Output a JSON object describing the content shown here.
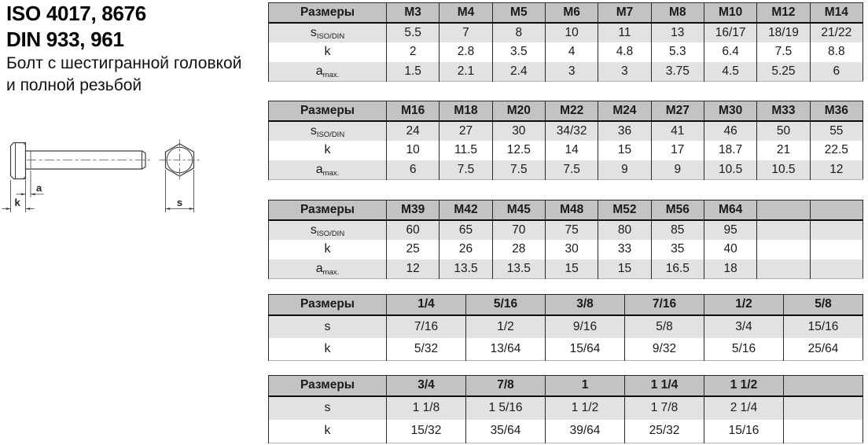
{
  "title": {
    "iso_line": "ISO 4017, 8676",
    "din_line": "DIN 933, 961",
    "desc_line1": "Болт с шестигранной головкой",
    "desc_line2": "и полной резьбой"
  },
  "drawing": {
    "labels": {
      "a": "a",
      "k": "k",
      "s": "s"
    }
  },
  "colors": {
    "header_bg": "#c3c3c3",
    "row_alt_bg": "#e2e2e2",
    "row_bg": "#ffffff",
    "border": "#2a2a2a",
    "text": "#1a1a1a"
  },
  "tables": [
    {
      "name": "metric-m3-m14",
      "corner_label": "Размеры",
      "columns": [
        "M3",
        "M4",
        "M5",
        "M6",
        "M7",
        "M8",
        "M10",
        "M12",
        "M14"
      ],
      "rows": [
        {
          "label": "s",
          "sub": "ISO/DIN",
          "values": [
            "5.5",
            "7",
            "8",
            "10",
            "11",
            "13",
            "16/17",
            "18/19",
            "21/22"
          ]
        },
        {
          "label": "k",
          "sub": "",
          "values": [
            "2",
            "2.8",
            "3.5",
            "4",
            "4.8",
            "5.3",
            "6.4",
            "7.5",
            "8.8"
          ]
        },
        {
          "label": "a",
          "sub": "max.",
          "values": [
            "1.5",
            "2.1",
            "2.4",
            "3",
            "3",
            "3.75",
            "4.5",
            "5.25",
            "6"
          ]
        }
      ]
    },
    {
      "name": "metric-m16-m36",
      "corner_label": "Размеры",
      "columns": [
        "M16",
        "M18",
        "M20",
        "M22",
        "M24",
        "M27",
        "M30",
        "M33",
        "M36"
      ],
      "rows": [
        {
          "label": "s",
          "sub": "ISO/DIN",
          "values": [
            "24",
            "27",
            "30",
            "34/32",
            "36",
            "41",
            "46",
            "50",
            "55"
          ]
        },
        {
          "label": "k",
          "sub": "",
          "values": [
            "10",
            "11.5",
            "12.5",
            "14",
            "15",
            "17",
            "18.7",
            "21",
            "22.5"
          ]
        },
        {
          "label": "a",
          "sub": "max.",
          "values": [
            "6",
            "7.5",
            "7.5",
            "7.5",
            "9",
            "9",
            "10.5",
            "10.5",
            "12"
          ]
        }
      ]
    },
    {
      "name": "metric-m39-m64",
      "corner_label": "Размеры",
      "columns": [
        "M39",
        "M42",
        "M45",
        "M48",
        "M52",
        "M56",
        "M64",
        "",
        ""
      ],
      "rows": [
        {
          "label": "s",
          "sub": "ISO/DIN",
          "values": [
            "60",
            "65",
            "70",
            "75",
            "80",
            "85",
            "95",
            "",
            ""
          ]
        },
        {
          "label": "k",
          "sub": "",
          "values": [
            "25",
            "26",
            "28",
            "30",
            "33",
            "35",
            "40",
            "",
            ""
          ]
        },
        {
          "label": "a",
          "sub": "max.",
          "values": [
            "12",
            "13.5",
            "13.5",
            "15",
            "15",
            "16.5",
            "18",
            "",
            ""
          ]
        }
      ]
    },
    {
      "name": "inch-1-4-to-5-8",
      "corner_label": "Размеры",
      "columns": [
        "1/4",
        "5/16",
        "3/8",
        "7/16",
        "1/2",
        "5/8"
      ],
      "rows": [
        {
          "label": "s",
          "sub": "",
          "values": [
            "7/16",
            "1/2",
            "9/16",
            "5/8",
            "3/4",
            "15/16"
          ]
        },
        {
          "label": "k",
          "sub": "",
          "values": [
            "5/32",
            "13/64",
            "15/64",
            "9/32",
            "5/16",
            "25/64"
          ]
        }
      ]
    },
    {
      "name": "inch-3-4-to-1-1-2",
      "corner_label": "Размеры",
      "columns": [
        "3/4",
        "7/8",
        "1",
        "1 1/4",
        "1 1/2",
        ""
      ],
      "rows": [
        {
          "label": "s",
          "sub": "",
          "values": [
            "1 1/8",
            "1 5/16",
            "1 1/2",
            "1 7/8",
            "2 1/4",
            ""
          ]
        },
        {
          "label": "k",
          "sub": "",
          "values": [
            "15/32",
            "35/64",
            "39/64",
            "25/32",
            "15/16",
            ""
          ]
        }
      ]
    }
  ]
}
